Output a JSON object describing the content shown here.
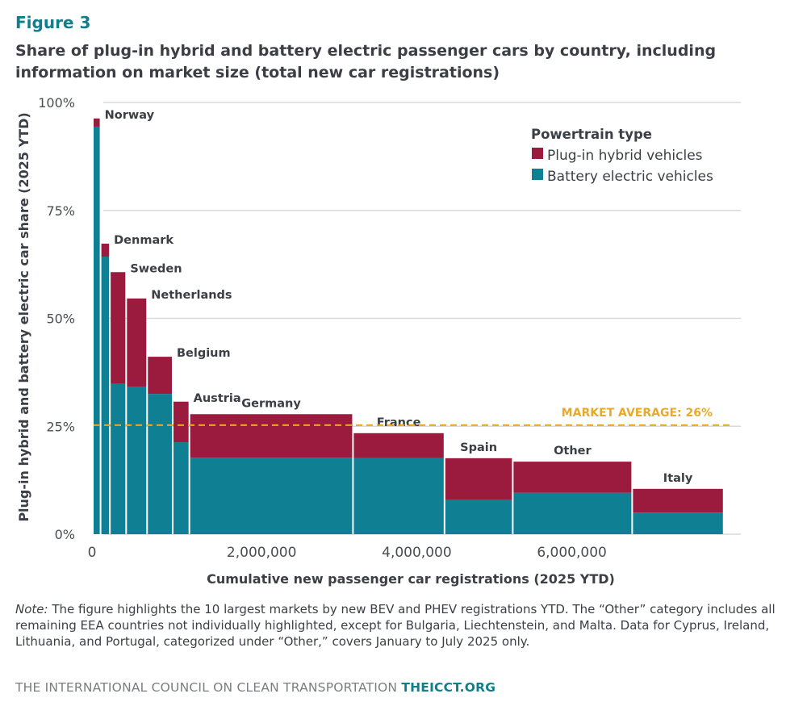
{
  "figure_label": "Figure 3",
  "title": "Share of plug-in hybrid and battery electric passenger cars by country, including information on market size (total new car registrations)",
  "note_label": "Note:",
  "note_text": " The figure highlights the 10 largest markets by new BEV and PHEV registrations YTD. The “Other” category includes all remaining EEA countries not individually highlighted, except for Bulgaria, Liechtenstein, and Malta. Data for Cyprus, Ireland, Lithuania, and Portugal, categorized under “Other,” covers January to July 2025 only.",
  "footer": {
    "org_name": "THE INTERNATIONAL COUNCIL ON CLEAN TRANSPORTATION",
    "site": "THEICCT.ORG"
  },
  "colors": {
    "phev": "#9b1b3e",
    "bev": "#0f7f93",
    "average": "#e8a92a",
    "grid": "#d9d9d9",
    "accent": "#0f7f8c"
  },
  "chart_data": {
    "type": "bar",
    "subtype": "variable-width stacked (marimekko)",
    "xlabel": "Cumulative new passenger car registrations (2025 YTD)",
    "ylabel": "Plug-in hybrid and battery electric car share (2025 YTD)",
    "xlim": [
      0,
      8200000
    ],
    "ylim": [
      0,
      100
    ],
    "x_ticks": [
      0,
      2000000,
      4000000,
      6000000
    ],
    "x_tick_labels": [
      "0",
      "2,000,000",
      "4,000,000",
      "6,000,000"
    ],
    "y_ticks": [
      0,
      25,
      50,
      75,
      100
    ],
    "y_tick_labels": [
      "0%",
      "25%",
      "50%",
      "75%",
      "100%"
    ],
    "grid": true,
    "legend": {
      "title": "Powertrain type",
      "placement": "top-right",
      "entries": [
        {
          "name": "Plug-in hybrid vehicles",
          "key": "phev"
        },
        {
          "name": "Battery electric vehicles",
          "key": "bev"
        }
      ]
    },
    "reference_line": {
      "label": "MARKET AVERAGE: 26%",
      "value": 26
    },
    "categories": [
      "Norway",
      "Denmark",
      "Sweden",
      "Netherlands",
      "Belgium",
      "Austria",
      "Germany",
      "France",
      "Spain",
      "Other",
      "Italy"
    ],
    "registrations": [
      100000,
      120000,
      210000,
      270000,
      330000,
      215000,
      2110000,
      1180000,
      880000,
      1540000,
      1180000
    ],
    "series": [
      {
        "name": "Battery electric vehicles",
        "key": "bev",
        "values": [
          94.4,
          64.3,
          34.8,
          34.2,
          32.5,
          21.3,
          17.7,
          17.6,
          7.9,
          9.6,
          5.0
        ]
      },
      {
        "name": "Plug-in hybrid vehicles",
        "key": "phev",
        "values": [
          1.9,
          3.0,
          25.9,
          20.4,
          8.6,
          9.4,
          10.1,
          5.8,
          9.7,
          7.2,
          5.5
        ]
      }
    ]
  }
}
